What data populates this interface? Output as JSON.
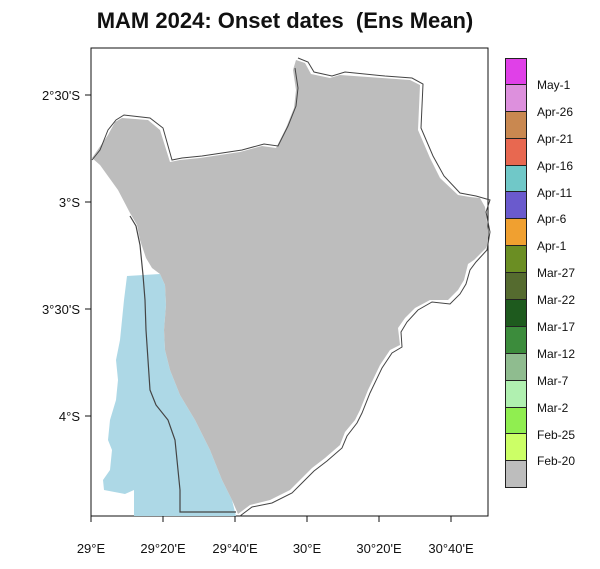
{
  "title": "MAM 2024: Onset dates  (Ens Mean)",
  "map": {
    "land_color": "#bdbdbd",
    "lake_color": "#add8e6",
    "border_color": "#444444",
    "lat_ticks": [
      "2°30'S",
      "3°S",
      "3°30'S",
      "4°S"
    ],
    "lon_ticks": [
      "29°E",
      "29°20'E",
      "29°40'E",
      "30°E",
      "30°20'E",
      "30°40'E"
    ]
  },
  "legend": {
    "items": [
      {
        "label": "May-1",
        "color": "#e040e8"
      },
      {
        "label": "Apr-26",
        "color": "#dd90dd"
      },
      {
        "label": "Apr-21",
        "color": "#c98850"
      },
      {
        "label": "Apr-16",
        "color": "#e86850"
      },
      {
        "label": "Apr-11",
        "color": "#70c8c8"
      },
      {
        "label": "Apr-6",
        "color": "#6a5acd"
      },
      {
        "label": "Apr-1",
        "color": "#f0a030"
      },
      {
        "label": "Mar-27",
        "color": "#6b8e23"
      },
      {
        "label": "Mar-22",
        "color": "#556b2f"
      },
      {
        "label": "Mar-17",
        "color": "#1e5a1e"
      },
      {
        "label": "Mar-12",
        "color": "#3c8c3c"
      },
      {
        "label": "Mar-7",
        "color": "#8fbc8f"
      },
      {
        "label": "Mar-2",
        "color": "#b0f0b0"
      },
      {
        "label": "Feb-25",
        "color": "#90ee50"
      },
      {
        "label": "Feb-20",
        "color": "#ccff66"
      },
      {
        "label": "",
        "color": "#bdbdbd"
      }
    ]
  }
}
